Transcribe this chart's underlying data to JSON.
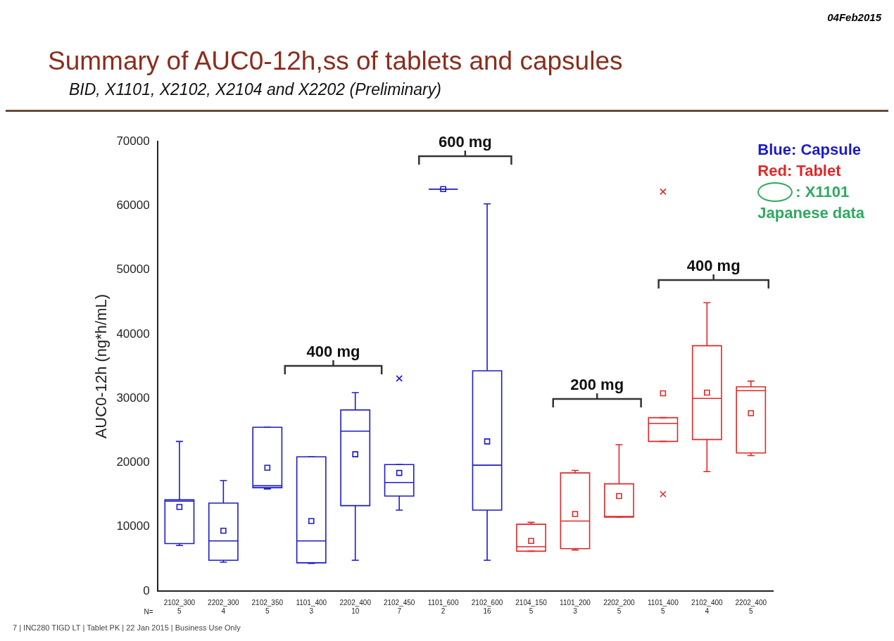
{
  "chart_data": {
    "type": "box",
    "title": "Summary of AUC0-12h,ss of tablets and capsules",
    "subtitle": "BID, X1101, X2102, X2104 and X2202 (Preliminary)",
    "ylabel": "AUC0-12h (ng*h/mL)",
    "categories": [
      "2102_300\n5",
      "2202_300\n4",
      "2102_350\n5",
      "1101_400\n3",
      "2202_400\n10",
      "2102_450\n7",
      "1101_600\n2",
      "2102_600\n16",
      "2104_150\n5",
      "1101_200\n3",
      "2202_200\n5",
      "1101_400\n5",
      "2102_400\n4",
      "2202_400\n5"
    ],
    "series": [
      {
        "name": "Blue: Capsule",
        "color": "#1c1cc8",
        "boxes": [
          {
            "low": 7100,
            "q1": 7400,
            "median": 14000,
            "q3": 14200,
            "high": 23300,
            "mean": 13100
          },
          {
            "low": 4500,
            "q1": 4800,
            "median": 7800,
            "q3": 13700,
            "high": 17200,
            "mean": 9400
          },
          {
            "low": 15900,
            "q1": 16100,
            "median": 16400,
            "q3": 25500,
            "high": 25500,
            "mean": 19200
          },
          {
            "low": 4300,
            "q1": 4400,
            "median": 7800,
            "q3": 20900,
            "high": 20900,
            "mean": 10900
          },
          {
            "low": 4800,
            "q1": 13300,
            "median": 24900,
            "q3": 28200,
            "high": 30900,
            "mean": 21300
          },
          {
            "low": 12600,
            "q1": 14800,
            "median": 16900,
            "q3": 19700,
            "high": 19700,
            "mean": 18400,
            "outliers": [
              33100
            ]
          },
          {
            "low": 62600,
            "q1": 62600,
            "median": 62600,
            "q3": 62600,
            "high": 62600,
            "mean": 62600
          },
          {
            "low": 4800,
            "q1": 12600,
            "median": 19600,
            "q3": 34300,
            "high": 60300,
            "mean": 23300
          },
          null,
          null,
          null,
          null,
          null,
          null
        ]
      },
      {
        "name": "Red: Tablet",
        "color": "#e02828",
        "boxes": [
          null,
          null,
          null,
          null,
          null,
          null,
          null,
          null,
          {
            "low": 6200,
            "q1": 6200,
            "median": 6900,
            "q3": 10400,
            "high": 10700,
            "mean": 7800
          },
          {
            "low": 6400,
            "q1": 6600,
            "median": 10900,
            "q3": 18400,
            "high": 18800,
            "mean": 12000
          },
          {
            "low": 11500,
            "q1": 11500,
            "median": 11600,
            "q3": 16700,
            "high": 22800,
            "mean": 14800
          },
          {
            "low": 23300,
            "q1": 23300,
            "median": 26100,
            "q3": 27000,
            "high": 27000,
            "mean": 30800,
            "outliers": [
              62200,
              15100
            ]
          },
          {
            "low": 18600,
            "q1": 23600,
            "median": 30000,
            "q3": 38200,
            "high": 44900,
            "mean": 30900
          },
          {
            "low": 21100,
            "q1": 21500,
            "median": 31200,
            "q3": 31800,
            "high": 32700,
            "mean": 27700
          }
        ]
      }
    ],
    "ylim": [
      0,
      70000
    ],
    "yticks": [
      0,
      10000,
      20000,
      30000,
      40000,
      50000,
      60000,
      70000
    ],
    "legend": "top right",
    "annotations": [
      "400 mg",
      "600 mg",
      "200 mg",
      "400 mg",
      "N=",
      ": X1101",
      "Japanese data",
      "04Feb2015",
      "7 | INC280 TIGD LT | Tablet PK | 22 Jan 2015 | Business Use Only"
    ]
  }
}
